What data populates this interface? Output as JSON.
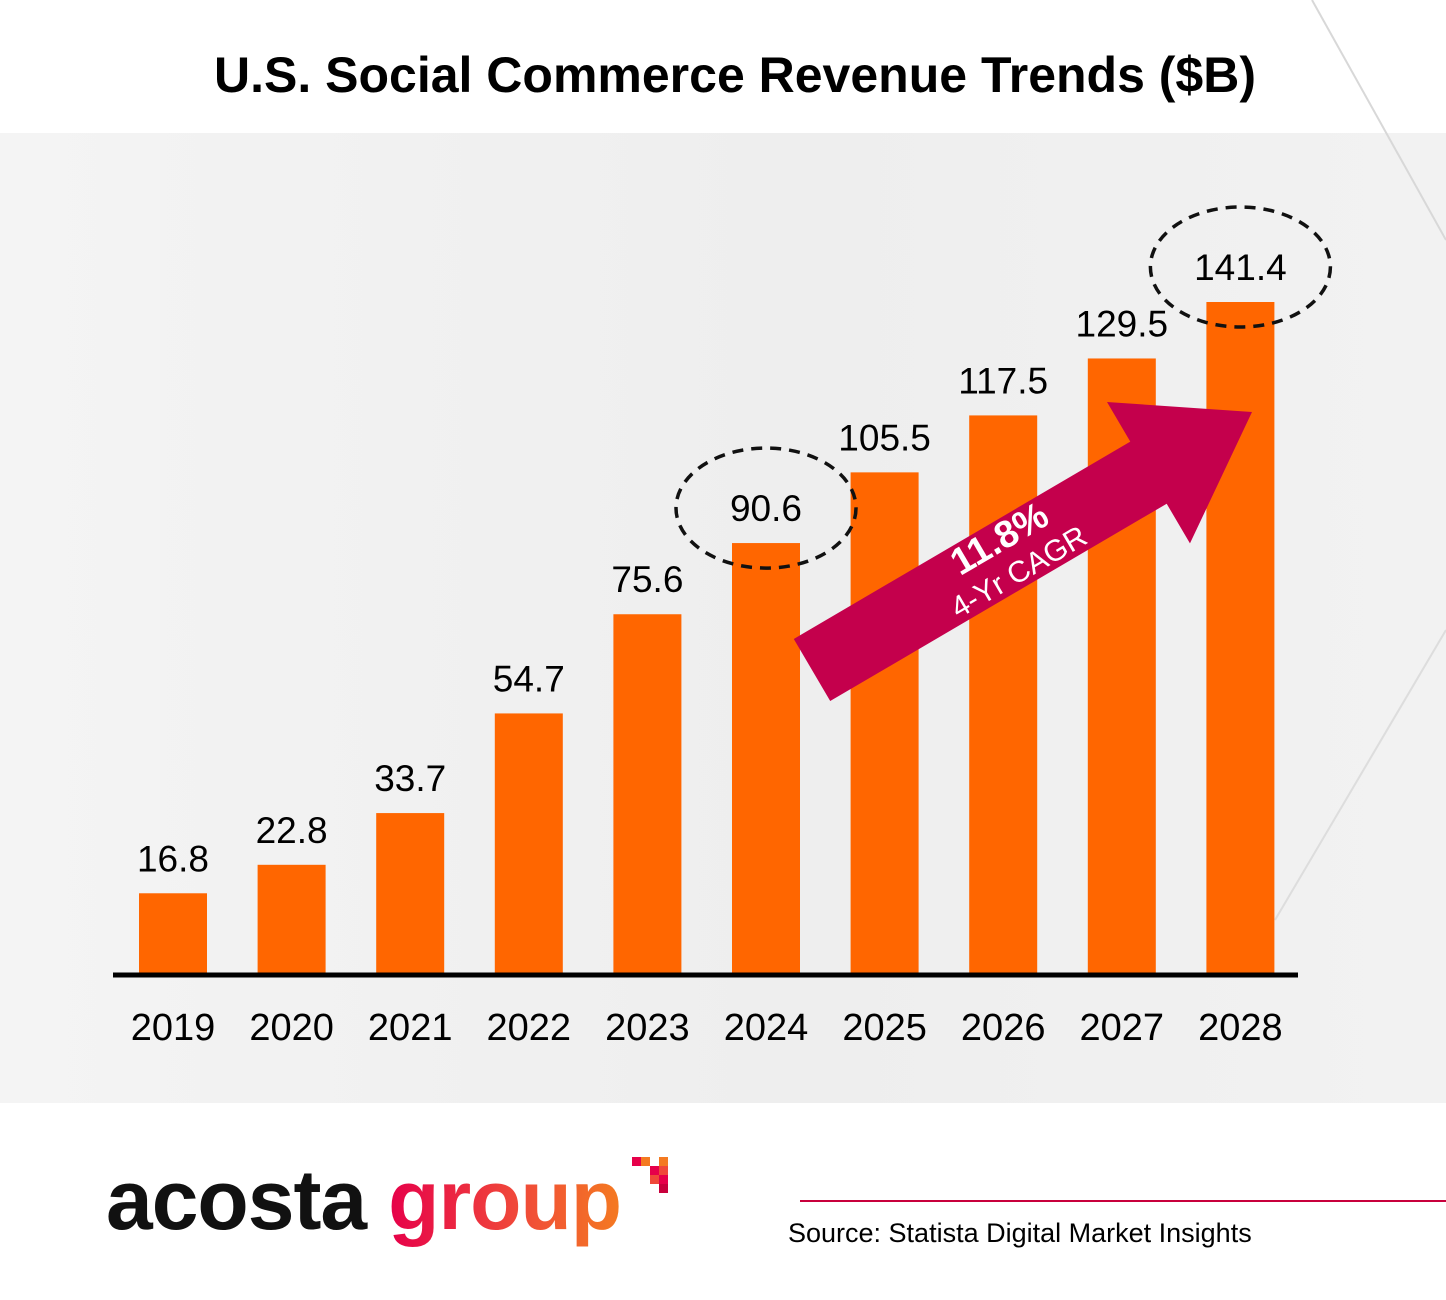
{
  "chart_data": {
    "type": "bar",
    "title": "U.S. Social Commerce Revenue Trends ($B)",
    "categories": [
      "2019",
      "2020",
      "2021",
      "2022",
      "2023",
      "2024",
      "2025",
      "2026",
      "2027",
      "2028"
    ],
    "values": [
      16.8,
      22.8,
      33.7,
      54.7,
      75.6,
      90.6,
      105.5,
      117.5,
      129.5,
      141.4
    ],
    "data_labels": [
      "16.8",
      "22.8",
      "33.7",
      "54.7",
      "75.6",
      "90.6",
      "105.5",
      "117.5",
      "129.5",
      "141.4"
    ],
    "bar_color": "#ff6600",
    "highlighted_categories": [
      "2024",
      "2028"
    ],
    "annotation": {
      "headline": "11.8%",
      "subtext": "4-Yr CAGR",
      "from_category": "2024",
      "to_category": "2028",
      "color": "#c4004c"
    },
    "ylim": [
      0,
      141.4
    ],
    "grid": false,
    "legend": "none"
  },
  "footer": {
    "logo_word1": "acosta",
    "logo_word2": "group",
    "source": "Source: Statista Digital Market Insights",
    "accent_color": "#c8003c"
  }
}
